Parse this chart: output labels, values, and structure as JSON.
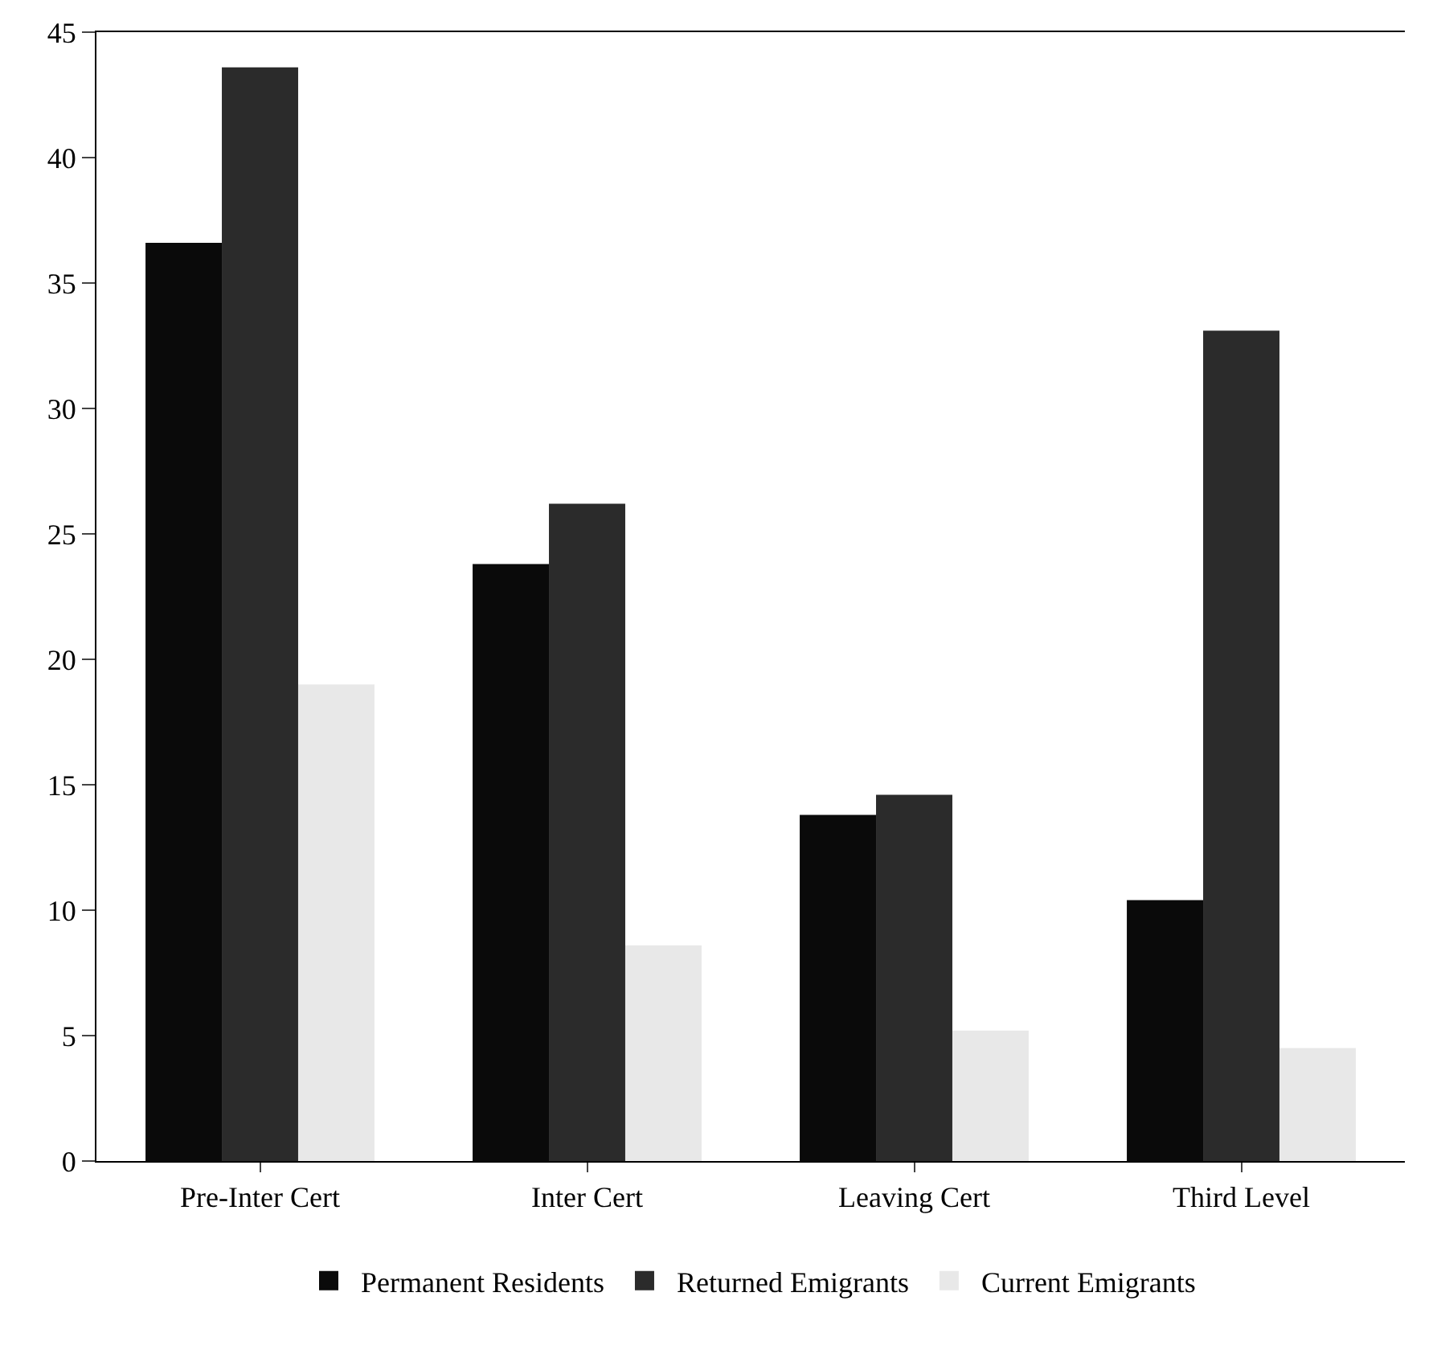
{
  "chart_data": {
    "type": "bar",
    "categories": [
      "Pre-Inter Cert",
      "Inter Cert",
      "Leaving Cert",
      "Third Level"
    ],
    "series": [
      {
        "name": "Permanent Residents",
        "color": "#0a0a0a",
        "values": [
          36.6,
          23.8,
          13.8,
          10.4
        ]
      },
      {
        "name": "Returned Emigrants",
        "color": "#2b2b2b",
        "values": [
          43.6,
          26.2,
          14.6,
          33.1
        ]
      },
      {
        "name": "Current Emigrants",
        "color": "#e8e8e8",
        "values": [
          19,
          8.6,
          5.2,
          4.5
        ]
      }
    ],
    "ylim": [
      0,
      45
    ],
    "yticks": [
      0,
      5,
      10,
      15,
      20,
      25,
      30,
      35,
      40,
      45
    ],
    "grid": false,
    "legend": "bottom"
  }
}
